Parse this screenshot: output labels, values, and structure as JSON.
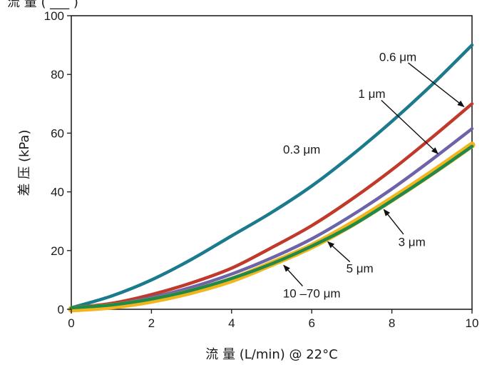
{
  "chart_data": {
    "type": "line",
    "title": "",
    "top_partial_text": "流 量 ( ___ )",
    "xlabel": "流 量 (L/min) @ 22°C",
    "ylabel": "差 压 (kPa)",
    "xlim": [
      0,
      10
    ],
    "ylim": [
      0,
      100
    ],
    "xticks": [
      "0",
      "2",
      "4",
      "6",
      "8",
      "10"
    ],
    "yticks": [
      "0",
      "20",
      "40",
      "60",
      "80",
      "100"
    ],
    "grid": false,
    "legend": "none",
    "series": [
      {
        "name": "0.3 μm",
        "color": "#1b7a8c",
        "x": [
          0,
          1,
          2,
          3,
          4,
          5,
          6,
          7,
          8,
          9,
          10
        ],
        "y": [
          0.5,
          4.5,
          10,
          17,
          25,
          33,
          42,
          52.5,
          64,
          76.5,
          90
        ]
      },
      {
        "name": "0.6 μm",
        "color": "#c0392b",
        "x": [
          0,
          1,
          2,
          3,
          4,
          5,
          6,
          7,
          8,
          9,
          10
        ],
        "y": [
          0.5,
          2,
          5,
          9,
          14,
          21,
          28.5,
          37.5,
          47.5,
          58.5,
          70
        ]
      },
      {
        "name": "1 μm",
        "color": "#6c63a8",
        "x": [
          0,
          1,
          2,
          3,
          4,
          5,
          6,
          7,
          8,
          9,
          10
        ],
        "y": [
          0.5,
          1.5,
          4,
          7.5,
          12,
          17.5,
          24,
          32,
          41,
          51,
          61.5
        ]
      },
      {
        "name": "3 μm",
        "color": "#f2b51c",
        "x": [
          0,
          1,
          2,
          3,
          4,
          5,
          6,
          7,
          8,
          9,
          10
        ],
        "y": [
          0,
          1,
          3,
          6,
          10,
          15.5,
          21.5,
          29,
          37.5,
          46.5,
          56
        ]
      },
      {
        "name": "5 μm",
        "color": "#1f8a4a",
        "x": [
          0,
          1,
          2,
          3,
          4,
          5,
          6,
          7,
          8,
          9,
          10
        ],
        "y": [
          0.5,
          1.5,
          3.5,
          6.5,
          10.5,
          15.5,
          21.5,
          28.5,
          37,
          46,
          55.5
        ]
      }
    ],
    "annotations": [
      {
        "text": "0.6 μm",
        "tx": 8.15,
        "ty": 86,
        "ax": 9.8,
        "ay": 69
      },
      {
        "text": "1 μm",
        "tx": 7.5,
        "ty": 73.5,
        "ax": 9.15,
        "ay": 53
      },
      {
        "text": "0.3 μm",
        "tx": 5.75,
        "ty": 54.5,
        "ax": null,
        "ay": null
      },
      {
        "text": "3 μm",
        "tx": 8.5,
        "ty": 23,
        "ax": 7.8,
        "ay": 34
      },
      {
        "text": "5 μm",
        "tx": 7.2,
        "ty": 14,
        "ax": 6.4,
        "ay": 23
      },
      {
        "text": "10 –70 μm",
        "tx": 6.0,
        "ty": 5.5,
        "ax": 5.3,
        "ay": 15
      }
    ]
  }
}
